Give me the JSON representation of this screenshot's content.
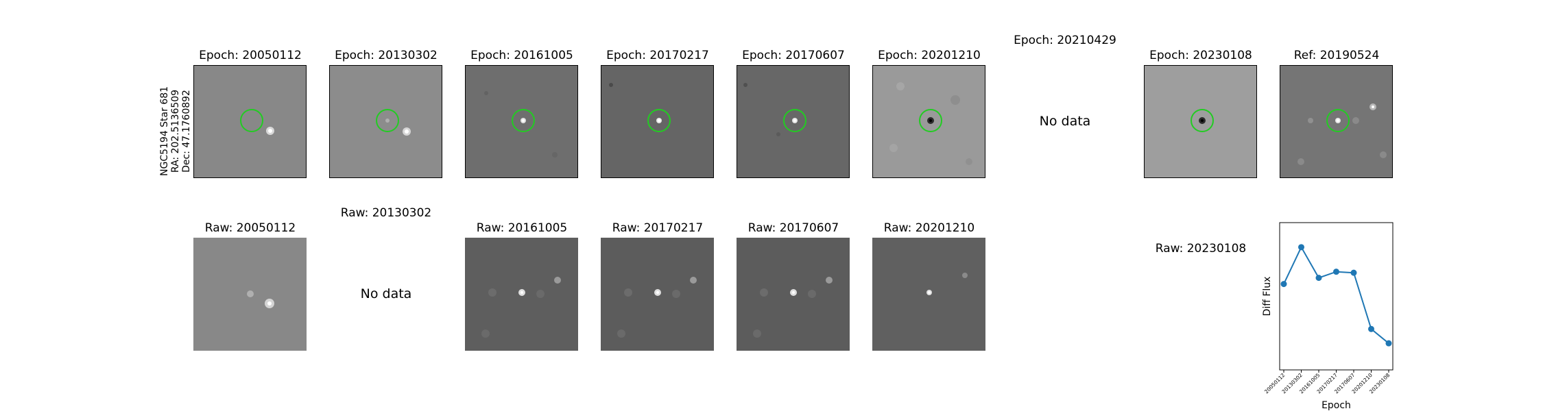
{
  "row_label": {
    "line1": "NGC5194 Star 681",
    "line2": "RA: 202.5136509",
    "line3": "Dec: 47.1760892"
  },
  "diff_row": [
    {
      "title": "Epoch: 20050112",
      "has_data": true
    },
    {
      "title": "Epoch: 20130302",
      "has_data": true
    },
    {
      "title": "Epoch: 20161005",
      "has_data": true
    },
    {
      "title": "Epoch: 20170217",
      "has_data": true
    },
    {
      "title": "Epoch: 20170607",
      "has_data": true
    },
    {
      "title": "Epoch: 20201210",
      "has_data": true
    },
    {
      "title": "Epoch: 20210429",
      "has_data": false,
      "nodata_text": "No data"
    },
    {
      "title": "Epoch: 20230108",
      "has_data": true
    },
    {
      "title": "Ref: 20190524",
      "has_data": true
    }
  ],
  "raw_row": [
    {
      "title": "Raw: 20050112",
      "has_data": true
    },
    {
      "title": "Raw: 20130302",
      "has_data": false,
      "nodata_text": "No data"
    },
    {
      "title": "Raw: 20161005",
      "has_data": true
    },
    {
      "title": "Raw: 20170217",
      "has_data": true
    },
    {
      "title": "Raw: 20170607",
      "has_data": true
    },
    {
      "title": "Raw: 20201210",
      "has_data": true
    },
    {
      "title": "Raw: 20230108",
      "has_data": false
    }
  ],
  "colors": {
    "circle": "#22cc22",
    "line": "#1f77b4"
  },
  "chart_data": {
    "type": "line",
    "xlabel": "Epoch",
    "ylabel": "Diff Flux",
    "categories": [
      "20050112",
      "20130302",
      "20161005",
      "20170217",
      "20170607",
      "20201210",
      "20230108"
    ],
    "series": [
      {
        "values": [
          0.62,
          0.8,
          0.65,
          0.68,
          0.675,
          0.4,
          0.33
        ]
      }
    ],
    "ylim": [
      0.2,
      0.92
    ],
    "grid": false
  }
}
